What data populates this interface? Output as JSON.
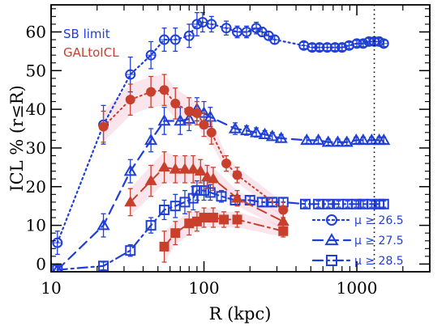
{
  "chart_data": {
    "type": "scatter",
    "title": "",
    "xlabel": "R (kpc)",
    "ylabel": "ICL % (r≤R)",
    "x_scale": "log",
    "xlim": [
      10,
      3000
    ],
    "ylim": [
      -2,
      67
    ],
    "x_ticks": [
      10,
      100,
      1000
    ],
    "x_tick_labels": [
      "10",
      "100",
      "1000"
    ],
    "y_ticks": [
      0,
      10,
      20,
      30,
      40,
      50,
      60
    ],
    "y_tick_labels": [
      "0",
      "10",
      "20",
      "30",
      "40",
      "50",
      "60"
    ],
    "grid": false,
    "reference_line_x": 1300,
    "method_legend": [
      {
        "text": "SB limit",
        "color": "#1f3fd6"
      },
      {
        "text": "GALtoICL",
        "color": "#c8402c"
      }
    ],
    "mu_legend": [
      {
        "marker": "circle",
        "line": "dotted",
        "text": "μ ≥ 26.5"
      },
      {
        "marker": "triangle",
        "line": "dashed",
        "text": "μ ≥ 27.5"
      },
      {
        "marker": "square",
        "line": "dashdot",
        "text": "μ ≥ 28.5"
      }
    ],
    "series": [
      {
        "method": "SB limit",
        "mu": "μ ≥ 26.5",
        "marker": "circle",
        "line": "dotted",
        "color": "#1f3fd6",
        "x": [
          11,
          22,
          33,
          45,
          55,
          65,
          80,
          90,
          98,
          112,
          140,
          165,
          190,
          220,
          240,
          265,
          290,
          450,
          510,
          570,
          640,
          720,
          800,
          890,
          1000,
          1100,
          1200,
          1300,
          1400,
          1500
        ],
        "y": [
          5.5,
          36,
          49,
          54,
          58,
          58,
          59,
          62,
          62.5,
          62,
          61,
          60,
          60,
          61,
          60,
          59,
          58,
          56.5,
          56,
          56,
          56,
          56,
          56,
          56.5,
          57,
          57,
          57.5,
          57.5,
          57.5,
          57
        ],
        "err": [
          3,
          5,
          4.5,
          3.5,
          3,
          3,
          3,
          3,
          2.5,
          2,
          1.8,
          1.5,
          1.5,
          1.5,
          1.2,
          1,
          1,
          0.8,
          0.8,
          0.8,
          0.8,
          0.8,
          0.8,
          0.8,
          0.8,
          0.8,
          0.8,
          0.8,
          0.8,
          0.8
        ]
      },
      {
        "method": "SB limit",
        "mu": "μ ≥ 27.5",
        "marker": "triangle",
        "line": "dashed",
        "color": "#1f3fd6",
        "x": [
          11,
          22,
          33,
          45,
          55,
          70,
          80,
          90,
          100,
          110,
          160,
          190,
          220,
          250,
          280,
          320,
          470,
          560,
          650,
          750,
          860,
          990,
          1100,
          1250,
          1400,
          1500
        ],
        "y": [
          -1.5,
          10,
          24,
          32,
          37,
          37,
          37.5,
          40,
          39,
          38,
          35,
          34.5,
          34,
          33.5,
          33,
          32.5,
          32,
          32,
          31.5,
          31.5,
          31.5,
          32,
          32,
          32,
          32,
          32
        ],
        "err": [
          1.5,
          3,
          3,
          3,
          3.5,
          3.5,
          3,
          3,
          3,
          2.5,
          1.5,
          1.2,
          1.2,
          1,
          1,
          1,
          0.8,
          0.8,
          0.8,
          0.8,
          0.8,
          0.8,
          0.8,
          0.8,
          0.8,
          0.8
        ]
      },
      {
        "method": "SB limit",
        "mu": "μ ≥ 28.5",
        "marker": "square",
        "line": "dashdot",
        "color": "#1f3fd6",
        "x": [
          11,
          22,
          33,
          45,
          55,
          65,
          75,
          85,
          90,
          100,
          110,
          130,
          160,
          200,
          240,
          280,
          330,
          460,
          560,
          650,
          760,
          870,
          990,
          1100,
          1250,
          1400,
          1500
        ],
        "y": [
          -1.5,
          -0.5,
          3.5,
          10,
          14,
          15,
          16,
          17,
          19,
          19,
          18.5,
          17.5,
          16.5,
          16.5,
          16,
          16,
          16,
          15.5,
          15.5,
          15.5,
          15.5,
          15.5,
          15.5,
          15.5,
          15.5,
          15.5,
          15.5
        ],
        "err": [
          1,
          1,
          1.5,
          2,
          2.5,
          3,
          3,
          3,
          2.5,
          2.5,
          2,
          1.5,
          1.2,
          1,
          1,
          1,
          1,
          0.8,
          0.8,
          0.8,
          0.8,
          0.8,
          0.8,
          0.8,
          0.8,
          0.8,
          0.8
        ]
      },
      {
        "method": "GALtoICL",
        "mu": "μ ≥ 26.5",
        "marker": "circle",
        "line": "dotted",
        "color": "#c8402c",
        "x": [
          22,
          33,
          45,
          55,
          65,
          80,
          90,
          100,
          112,
          140,
          165,
          330
        ],
        "y": [
          35.5,
          42.5,
          44.5,
          45,
          41.5,
          39.5,
          39,
          36,
          34,
          26,
          23,
          14
        ],
        "err": [
          4,
          4,
          4,
          4,
          4,
          3.5,
          3,
          3,
          3,
          2,
          2,
          2
        ]
      },
      {
        "method": "GALtoICL",
        "mu": "μ ≥ 27.5",
        "marker": "triangle",
        "line": "dashed",
        "color": "#c8402c",
        "x": [
          33,
          45,
          55,
          65,
          75,
          85,
          95,
          105,
          115,
          165,
          330
        ],
        "y": [
          16,
          21.5,
          25,
          24.5,
          24.5,
          24.5,
          24,
          22.5,
          22,
          17,
          11
        ],
        "err": [
          3.5,
          4,
          4,
          3.5,
          3.5,
          3.5,
          3,
          3,
          3,
          2,
          2
        ]
      },
      {
        "method": "GALtoICL",
        "mu": "μ ≥ 28.5",
        "marker": "square",
        "line": "dashdot",
        "color": "#c8402c",
        "x": [
          55,
          65,
          80,
          90,
          100,
          115,
          135,
          165,
          330
        ],
        "y": [
          4.5,
          8,
          10.5,
          11,
          12,
          12,
          11.5,
          11.5,
          8.5
        ],
        "err": [
          4,
          3,
          3,
          2.5,
          2.5,
          2.5,
          2,
          2,
          1.5
        ]
      }
    ]
  }
}
